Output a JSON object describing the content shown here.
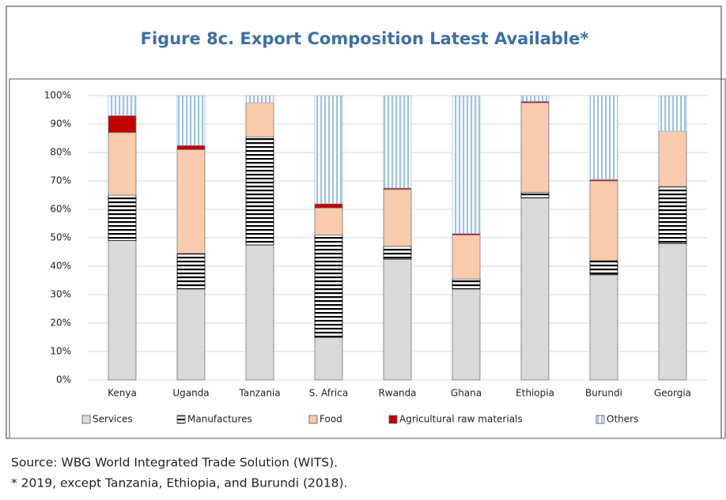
{
  "chart_data": {
    "type": "stacked-bar",
    "title": "Figure 8c. Export Composition Latest Available*",
    "categories": [
      "Kenya",
      "Uganda",
      "Tanzania",
      "S. Africa",
      "Rwanda",
      "Ghana",
      "Ethiopia",
      "Burundi",
      "Georgia"
    ],
    "series": [
      {
        "name": "Services",
        "color": "#d9d9d9",
        "pattern": "solid",
        "values": [
          49,
          32,
          47.5,
          15,
          42.5,
          32,
          64,
          37,
          48
        ]
      },
      {
        "name": "Manufactures",
        "color": "#000000",
        "pattern": "horizontal-stripes",
        "values": [
          16,
          12.5,
          38,
          36,
          4.5,
          3.5,
          2,
          5,
          20
        ]
      },
      {
        "name": "Food",
        "color": "#f8cbad",
        "pattern": "solid",
        "values": [
          22,
          36.5,
          12,
          9.5,
          20,
          15.5,
          31.5,
          28,
          19.5
        ]
      },
      {
        "name": "Agricultural raw materials",
        "color": "#c00000",
        "pattern": "solid",
        "values": [
          6,
          1.5,
          0,
          1.5,
          0.5,
          0.5,
          0.5,
          0.5,
          0
        ]
      },
      {
        "name": "Others",
        "color": "#9dc3e6",
        "pattern": "vertical-stripes",
        "values": [
          7,
          17.5,
          2.5,
          38,
          32.5,
          48.5,
          2,
          29.5,
          12.5
        ]
      }
    ],
    "ylim": [
      0,
      100
    ],
    "yticks": [
      {
        "value": 0,
        "label": "0%"
      },
      {
        "value": 10,
        "label": "10%"
      },
      {
        "value": 20,
        "label": "20%"
      },
      {
        "value": 30,
        "label": "30%"
      },
      {
        "value": 40,
        "label": "40%"
      },
      {
        "value": 50,
        "label": "50%"
      },
      {
        "value": 60,
        "label": "60%"
      },
      {
        "value": 70,
        "label": "70%"
      },
      {
        "value": 80,
        "label": "80%"
      },
      {
        "value": 90,
        "label": "90%"
      },
      {
        "value": 100,
        "label": "100%"
      }
    ],
    "grid": true,
    "legend": "bottom"
  },
  "notes": [
    "Source: WBG World Integrated Trade Solution (WITS).",
    "* 2019, except Tanzania, Ethiopia, and Burundi (2018)."
  ]
}
